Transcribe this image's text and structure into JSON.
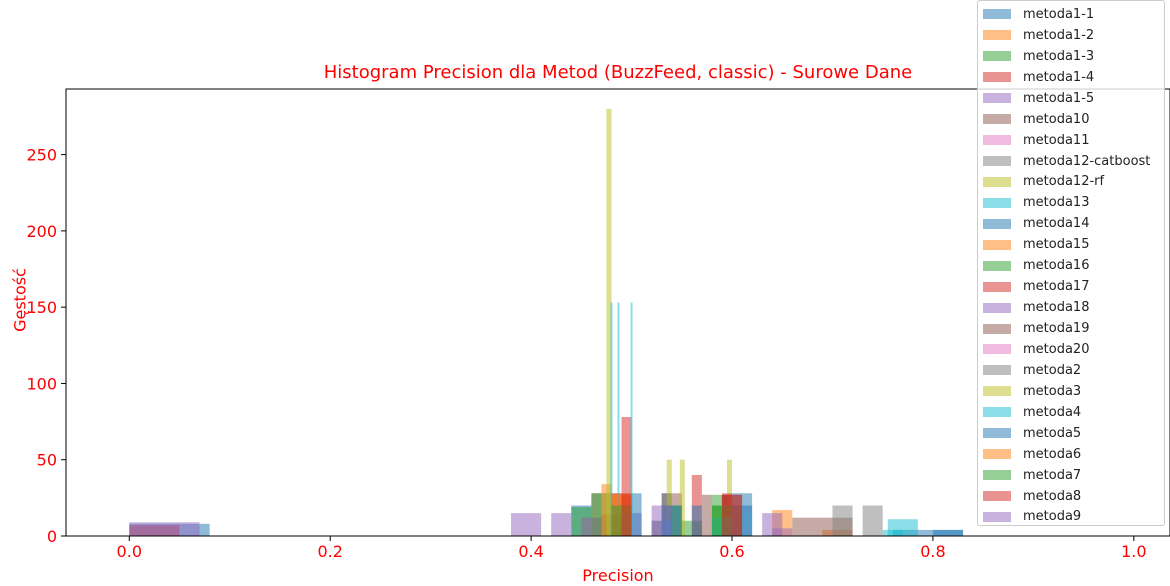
{
  "chart_data": {
    "type": "histogram",
    "title": "Histogram Precision dla Metod (BuzzFeed, classic) - Surowe Dane",
    "xlabel": "Precision",
    "ylabel": "Gęstość",
    "xlim": [
      -0.063,
      1.036
    ],
    "ylim": [
      0,
      293
    ],
    "xticks": [
      "0.0",
      "0.2",
      "0.4",
      "0.6",
      "0.8",
      "1.0"
    ],
    "xtick_values": [
      0.0,
      0.2,
      0.4,
      0.6,
      0.8,
      1.0
    ],
    "yticks": [
      "0",
      "50",
      "100",
      "150",
      "200",
      "250"
    ],
    "ytick_values": [
      0,
      50,
      100,
      150,
      200,
      250
    ],
    "grid": false,
    "legend_position": "top-right",
    "series": [
      {
        "name": "metoda1-1",
        "color": "#1f77b4",
        "bins": [
          [
            0.0,
            0.08,
            8
          ],
          [
            0.44,
            0.46,
            20
          ],
          [
            0.53,
            0.54,
            28
          ],
          [
            0.6,
            0.62,
            28
          ],
          [
            0.76,
            0.83,
            4
          ]
        ]
      },
      {
        "name": "metoda1-2",
        "color": "#ff7f0e",
        "bins": [
          [
            0.47,
            0.48,
            34
          ],
          [
            0.64,
            0.66,
            17
          ],
          [
            0.69,
            0.72,
            4
          ]
        ]
      },
      {
        "name": "metoda1-3",
        "color": "#2ca02c",
        "bins": [
          [
            0.44,
            0.46,
            19
          ],
          [
            0.52,
            0.54,
            10
          ],
          [
            0.55,
            0.57,
            10
          ],
          [
            0.58,
            0.6,
            27
          ],
          [
            0.6,
            0.61,
            20
          ]
        ]
      },
      {
        "name": "metoda1-4",
        "color": "#d62728",
        "bins": [
          [
            0.0,
            0.05,
            7
          ],
          [
            0.47,
            0.49,
            14
          ],
          [
            0.49,
            0.5,
            78
          ],
          [
            0.56,
            0.57,
            40
          ],
          [
            0.59,
            0.6,
            27
          ]
        ]
      },
      {
        "name": "metoda1-5",
        "color": "#9467bd",
        "bins": [
          [
            0.0,
            0.07,
            9
          ],
          [
            0.38,
            0.41,
            15
          ],
          [
            0.42,
            0.44,
            15
          ],
          [
            0.45,
            0.47,
            12
          ],
          [
            0.49,
            0.51,
            15
          ],
          [
            0.63,
            0.65,
            15
          ],
          [
            0.64,
            0.66,
            5
          ]
        ]
      },
      {
        "name": "metoda10",
        "color": "#8c564b",
        "bins": [
          [
            0.46,
            0.48,
            28
          ],
          [
            0.53,
            0.55,
            28
          ],
          [
            0.66,
            0.7,
            12
          ],
          [
            0.7,
            0.72,
            12
          ]
        ]
      },
      {
        "name": "metoda11",
        "color": "#e377c2",
        "bins": []
      },
      {
        "name": "metoda12-catboost",
        "color": "#7f7f7f",
        "bins": [
          [
            0.7,
            0.72,
            20
          ],
          [
            0.73,
            0.75,
            20
          ]
        ]
      },
      {
        "name": "metoda12-rf",
        "color": "#bcbd22",
        "bins": [
          [
            0.475,
            0.48,
            280
          ],
          [
            0.535,
            0.54,
            50
          ],
          [
            0.548,
            0.553,
            50
          ],
          [
            0.595,
            0.6,
            50
          ]
        ]
      },
      {
        "name": "metoda13",
        "color": "#17becf",
        "bins": [
          [
            0.755,
            0.785,
            11
          ]
        ]
      },
      {
        "name": "metoda14",
        "color": "#1f77b4",
        "bins": [
          [
            0.5,
            0.51,
            28
          ],
          [
            0.56,
            0.57,
            20
          ],
          [
            0.6,
            0.62,
            20
          ]
        ]
      },
      {
        "name": "metoda15",
        "color": "#ff7f0e",
        "bins": [
          [
            0.48,
            0.5,
            28
          ]
        ]
      },
      {
        "name": "metoda16",
        "color": "#2ca02c",
        "bins": [
          [
            0.46,
            0.47,
            28
          ],
          [
            0.53,
            0.55,
            20
          ],
          [
            0.58,
            0.6,
            20
          ]
        ]
      },
      {
        "name": "metoda17",
        "color": "#d62728",
        "bins": [
          [
            0.48,
            0.5,
            28
          ],
          [
            0.59,
            0.6,
            28
          ]
        ]
      },
      {
        "name": "metoda18",
        "color": "#9467bd",
        "bins": [
          [
            0.49,
            0.5,
            15
          ],
          [
            0.52,
            0.54,
            10
          ]
        ]
      },
      {
        "name": "metoda19",
        "color": "#8c564b",
        "bins": [
          [
            0.57,
            0.58,
            27
          ],
          [
            0.59,
            0.61,
            27
          ]
        ]
      },
      {
        "name": "metoda20",
        "color": "#e377c2",
        "bins": []
      },
      {
        "name": "metoda2",
        "color": "#7f7f7f",
        "bins": [
          [
            0.45,
            0.47,
            12
          ]
        ]
      },
      {
        "name": "metoda3",
        "color": "#bcbd22",
        "bins": [
          [
            0.47,
            0.48,
            28
          ]
        ]
      },
      {
        "name": "metoda4",
        "color": "#17becf",
        "bins": [
          [
            0.479,
            0.481,
            153
          ],
          [
            0.486,
            0.488,
            153
          ],
          [
            0.499,
            0.501,
            153
          ],
          [
            0.53,
            0.54,
            10
          ],
          [
            0.58,
            0.6,
            12
          ],
          [
            0.75,
            0.77,
            4
          ]
        ]
      },
      {
        "name": "metoda5",
        "color": "#1f77b4",
        "bins": [
          [
            0.53,
            0.55,
            20
          ],
          [
            0.8,
            0.83,
            4
          ]
        ]
      },
      {
        "name": "metoda6",
        "color": "#ff7f0e",
        "bins": [
          [
            0.48,
            0.5,
            27
          ]
        ]
      },
      {
        "name": "metoda7",
        "color": "#2ca02c",
        "bins": [
          [
            0.48,
            0.5,
            20
          ],
          [
            0.58,
            0.6,
            20
          ]
        ]
      },
      {
        "name": "metoda8",
        "color": "#d62728",
        "bins": [
          [
            0.49,
            0.5,
            27
          ],
          [
            0.59,
            0.61,
            27
          ]
        ]
      },
      {
        "name": "metoda9",
        "color": "#9467bd",
        "bins": [
          [
            0.52,
            0.54,
            20
          ]
        ]
      }
    ]
  }
}
